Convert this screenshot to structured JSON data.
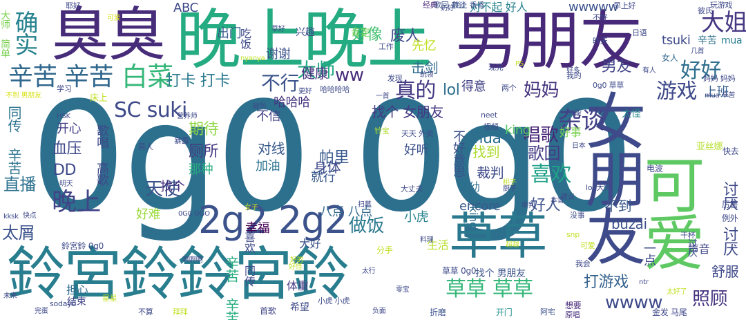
{
  "cloud": {
    "words": [
      {
        "t": "0g0 0g0",
        "c": "#2d708e"
      },
      {
        "t": "男朋友",
        "c": "#482878"
      },
      {
        "t": "晚上晚上",
        "c": "#25ab82"
      },
      {
        "t": "臭臭",
        "c": "#472c7a"
      },
      {
        "t": "鈴宮鈴鈴宮鈴",
        "c": "#287d8e"
      },
      {
        "t": "草草",
        "c": "#2a788e"
      },
      {
        "t": "女朋友",
        "c": "#3e4a89"
      },
      {
        "t": "可爱",
        "c": "#5ec962"
      },
      {
        "t": "2g2 2g2",
        "c": "#3b528b"
      },
      {
        "t": "确实",
        "c": "#26828e"
      },
      {
        "t": "辛苦 辛苦",
        "c": "#31688e"
      },
      {
        "t": "白菜",
        "c": "#35b779"
      },
      {
        "t": "SC suki",
        "c": "#3e4a89"
      },
      {
        "t": "晚上",
        "c": "#414487"
      },
      {
        "t": "直播",
        "c": "#2c728e"
      },
      {
        "t": "太屑",
        "c": "#3b528b"
      },
      {
        "t": "DD",
        "c": "#3e4989"
      },
      {
        "t": "大姐",
        "c": "#453781"
      },
      {
        "t": "好好",
        "c": "#2e6e8e"
      },
      {
        "t": "游戏",
        "c": "#3e4989"
      },
      {
        "t": "杂谈",
        "c": "#424086"
      },
      {
        "t": "男友",
        "c": "#414487"
      },
      {
        "t": "上班",
        "c": "#355f8d"
      },
      {
        "t": "大师",
        "c": "#22a884"
      },
      {
        "t": "真的",
        "c": "#443983"
      },
      {
        "t": "妈妈",
        "c": "#46337e"
      },
      {
        "t": "喜欢",
        "c": "#1fa188"
      },
      {
        "t": "草草 草草",
        "c": "#35b779"
      },
      {
        "t": "wwww",
        "c": "#3e4a89"
      },
      {
        "t": "照顾",
        "c": "#46327e"
      },
      {
        "t": "打游戏",
        "c": "#34618d"
      },
      {
        "t": "好人",
        "c": "#3b528b"
      },
      {
        "t": "天使",
        "c": "#3b528b"
      },
      {
        "t": "做饭",
        "c": "#2a788e"
      },
      {
        "t": "帕里",
        "c": "#38598c"
      },
      {
        "t": "唱歌",
        "c": "#482576"
      },
      {
        "t": "歌回",
        "c": "#443a83"
      },
      {
        "t": "打卡 打卡",
        "c": "#2a788e"
      },
      {
        "t": "不行",
        "c": "#3b528b"
      },
      {
        "t": "健康",
        "c": "#46337e"
      },
      {
        "t": "ww",
        "c": "#472d7b"
      },
      {
        "t": "好像",
        "c": "#44bf70"
      },
      {
        "t": "废人",
        "c": "#3e4989"
      },
      {
        "t": "出门",
        "c": "#38588c"
      },
      {
        "t": "谢谢",
        "c": "#3b528b"
      },
      {
        "t": "击剑",
        "c": "#2f6c8e"
      },
      {
        "t": "lol",
        "c": "#2e6f8e"
      },
      {
        "t": "得意",
        "c": "#424186"
      },
      {
        "t": "找个 女朋友",
        "c": "#443983"
      },
      {
        "t": "不信",
        "c": "#424186"
      },
      {
        "t": "哈哈哈",
        "c": "#46337e"
      },
      {
        "t": "期待",
        "c": "#8fd744"
      },
      {
        "t": "厕所",
        "c": "#453882"
      },
      {
        "t": "对线",
        "c": "#38598c"
      },
      {
        "t": "血压",
        "c": "#3e4989"
      },
      {
        "t": "开心",
        "c": "#424086"
      },
      {
        "t": "身体",
        "c": "#3e4989"
      },
      {
        "t": "加油",
        "c": "#2c738e"
      },
      {
        "t": "那种",
        "c": "#28ae80"
      },
      {
        "t": "就行",
        "c": "#38588c"
      },
      {
        "t": "找到",
        "c": "#addc30"
      },
      {
        "t": "裁判",
        "c": "#3e4989"
      },
      {
        "t": "mua",
        "c": "#2e6e8e"
      },
      {
        "t": "好听",
        "c": "#3b528b"
      },
      {
        "t": "好事",
        "c": "#7ad151"
      },
      {
        "t": "king",
        "c": "#58c765"
      },
      {
        "t": "太怪",
        "c": "#24868e"
      },
      {
        "t": "encore",
        "c": "#38598c"
      },
      {
        "t": "小虎",
        "c": "#26828e"
      },
      {
        "t": "好难",
        "c": "#9bd93c"
      },
      {
        "t": "八点 八点",
        "c": "#31688e"
      },
      {
        "t": "找个",
        "c": "#46327e"
      },
      {
        "t": "幸福",
        "c": "#440154"
      },
      {
        "t": "大好",
        "c": "#3b528b"
      },
      {
        "t": "生活",
        "c": "#b5de2b"
      },
      {
        "t": "buzai",
        "c": "#3b528b"
      },
      {
        "t": "不到",
        "c": "#38598c"
      },
      {
        "t": "舒服",
        "c": "#3e4989"
      },
      {
        "t": "声音",
        "c": "#404688"
      },
      {
        "t": "tsuki",
        "c": "#3e4989"
      },
      {
        "t": "wwwww",
        "c": "#3b528b"
      },
      {
        "t": "ABC",
        "c": "#3e4989"
      },
      {
        "t": "兴趣",
        "c": "#3e4989"
      },
      {
        "t": "肯定",
        "c": "#75d054"
      },
      {
        "t": "对不起 好人",
        "c": "#26828e"
      },
      {
        "t": "女人",
        "c": "#31688e"
      },
      {
        "t": "辛苦",
        "c": "#2c728e"
      },
      {
        "t": "mua",
        "c": "#287d8e"
      },
      {
        "t": "体重",
        "c": "#443983"
      },
      {
        "t": "担心",
        "c": "#2f6b8e"
      },
      {
        "t": "结束",
        "c": "#404588"
      },
      {
        "t": "希望",
        "c": "#3e4989"
      },
      {
        "t": "首歌",
        "c": "#414487"
      },
      {
        "t": "开门",
        "c": "#21918c"
      },
      {
        "t": "金发 马尾",
        "c": "#3f4788"
      },
      {
        "t": "折磨",
        "c": "#3b528b"
      },
      {
        "t": "想要",
        "c": "#472a7a"
      },
      {
        "t": "原唱",
        "c": "#472d7b"
      },
      {
        "t": "阿宅",
        "c": "#3b528b"
      },
      {
        "t": "草草 0g0",
        "c": "#3e4989"
      },
      {
        "t": "找个 男朋友",
        "c": "#3b528b"
      },
      {
        "t": "幼儿 king",
        "c": "#2e6e8e"
      },
      {
        "t": "鈴宮鈴 0g0",
        "c": "#3e4989"
      },
      {
        "t": "不好意思",
        "c": "#3b528b"
      },
      {
        "t": "辛苦 辛苦",
        "c": "#28ae80"
      },
      {
        "t": "同传 辛苦",
        "c": "#2c738e"
      },
      {
        "t": "吃饭",
        "c": "#3e4989"
      },
      {
        "t": "过厌",
        "c": "#3e4a89"
      },
      {
        "t": "一点",
        "c": "#3e4989"
      },
      {
        "t": "讨厌 讨厌",
        "c": "#3e4989"
      },
      {
        "t": "歌唱 高歌",
        "c": "#3e4989"
      },
      {
        "t": "喜欢 同传",
        "c": "#3e4989"
      },
      {
        "t": "大师 简单",
        "c": "#7ad151"
      },
      {
        "t": "好怪",
        "c": "#c2df23"
      },
      {
        "t": "奶好",
        "c": "#3e4989"
      },
      {
        "t": "经典",
        "c": "#482475"
      },
      {
        "t": "歌回 杂谈",
        "c": "#3b528b"
      },
      {
        "t": "晚上 香香",
        "c": "#3b528b"
      },
      {
        "t": "早上好",
        "c": "#3e4989"
      },
      {
        "t": "不好",
        "c": "#3e4989"
      },
      {
        "t": "玩游戏",
        "c": "#3e4989"
      },
      {
        "t": "彼氏",
        "c": "#3e4989"
      },
      {
        "t": "日语",
        "c": "#3e4989"
      },
      {
        "t": "昨天",
        "c": "#3e4989"
      },
      {
        "t": "发现",
        "c": "#3e4989"
      },
      {
        "t": "工作",
        "c": "#3e4989"
      },
      {
        "t": "两个",
        "c": "#3e4989"
      },
      {
        "t": "现充",
        "c": "#3e4989"
      },
      {
        "t": "0g0 草草",
        "c": "#3e4989"
      },
      {
        "t": "亚丝娜",
        "c": "#b5de2b"
      },
      {
        "t": "例外",
        "c": "#3e4989"
      },
      {
        "t": "厉害",
        "c": "#3e4989"
      },
      {
        "t": "快去",
        "c": "#3e4989"
      },
      {
        "t": "电波",
        "c": "#3e4989"
      },
      {
        "t": "lol 大师",
        "c": "#3e4989"
      },
      {
        "t": "天天 外卖",
        "c": "#3e4989"
      },
      {
        "t": "铃宝",
        "c": "#addc30"
      },
      {
        "t": "视频",
        "c": "#3e4989"
      },
      {
        "t": "neet",
        "c": "#3e4989"
      },
      {
        "t": "暴露",
        "c": "#3e4989"
      },
      {
        "t": "HSK",
        "c": "#3e4989"
      },
      {
        "t": "床上",
        "c": "#c2df23"
      },
      {
        "t": "学习",
        "c": "#3e4989"
      },
      {
        "t": "不到 男朋友",
        "c": "#d8e219"
      },
      {
        "t": "更好",
        "c": "#3e4989"
      },
      {
        "t": "哈哈哈哈",
        "c": "#3e4989"
      },
      {
        "t": "一首",
        "c": "#3e4989"
      },
      {
        "t": "统领",
        "c": "#3e4989"
      },
      {
        "t": "PS",
        "c": "#c2df23"
      },
      {
        "t": "好多",
        "c": "#3e4989"
      },
      {
        "t": "几首",
        "c": "#3e4989"
      },
      {
        "t": "有人",
        "c": "#3e4989"
      },
      {
        "t": "妈妈 妈妈",
        "c": "#3e4989"
      },
      {
        "t": "可爱",
        "c": "#d8e219"
      },
      {
        "t": "耶好",
        "c": "#3e4989"
      },
      {
        "t": "草好",
        "c": "#3e4989"
      },
      {
        "t": "nyanya",
        "c": "#c2df23"
      },
      {
        "t": "破防",
        "c": "#3e4989"
      },
      {
        "t": "营养师",
        "c": "#3e4989"
      },
      {
        "t": "0G0 OGO",
        "c": "#3e4989"
      },
      {
        "t": "啊啊啊",
        "c": "#3e4989"
      },
      {
        "t": "sodayo",
        "c": "#3e4989"
      },
      {
        "t": "快点",
        "c": "#3e4989"
      },
      {
        "t": "kksk",
        "c": "#3e4989"
      },
      {
        "t": "未来",
        "c": "#3e4989"
      },
      {
        "t": "完蛋",
        "c": "#3e4989"
      },
      {
        "t": "拜拜",
        "c": "#c2df23"
      },
      {
        "t": "不算",
        "c": "#3e4989"
      },
      {
        "t": "星星",
        "c": "#c2df23"
      },
      {
        "t": "小虎 小虎",
        "c": "#3e4989"
      },
      {
        "t": "负面",
        "c": "#3e4989"
      },
      {
        "t": "零宝",
        "c": "#3e4989"
      },
      {
        "t": "太行",
        "c": "#3e4989"
      },
      {
        "t": "好的",
        "c": "#c2df23"
      },
      {
        "t": "分手",
        "c": "#c2df23"
      },
      {
        "t": "料理",
        "c": "#3e4989"
      },
      {
        "t": "超越",
        "c": "#c2df23"
      },
      {
        "t": "我会",
        "c": "#3e4989"
      },
      {
        "t": "snp",
        "c": "#c2df23"
      },
      {
        "t": "干杯",
        "c": "#3e4989"
      },
      {
        "t": "太好了",
        "c": "#c2df23"
      },
      {
        "t": "ntr",
        "c": "#3e4989"
      },
      {
        "t": "没事",
        "c": "#3e4989"
      },
      {
        "t": "建议",
        "c": "#3e4989"
      },
      {
        "t": "厨子",
        "c": "#3e4989"
      },
      {
        "t": "日本",
        "c": "#3e4989"
      },
      {
        "t": "大丈夫",
        "c": "#3e4989"
      },
      {
        "t": "审判",
        "c": "#3e4989"
      },
      {
        "t": "扫墓",
        "c": "#3e4989"
      },
      {
        "t": "女子",
        "c": "#c2df23"
      },
      {
        "t": "本音",
        "c": "#3e4989"
      },
      {
        "t": "男人",
        "c": "#3e4989"
      },
      {
        "t": "明天",
        "c": "#3e4989"
      },
      {
        "t": "桃子",
        "c": "#c2df23"
      },
      {
        "t": "只能",
        "c": "#3e4989"
      },
      {
        "t": "可爱",
        "c": "#c2df23"
      },
      {
        "t": "mua 辛苦",
        "c": "#3e4989"
      },
      {
        "t": "先忆",
        "c": "#c2df23"
      },
      {
        "t": "我的",
        "c": "#3e4989"
      }
    ]
  }
}
